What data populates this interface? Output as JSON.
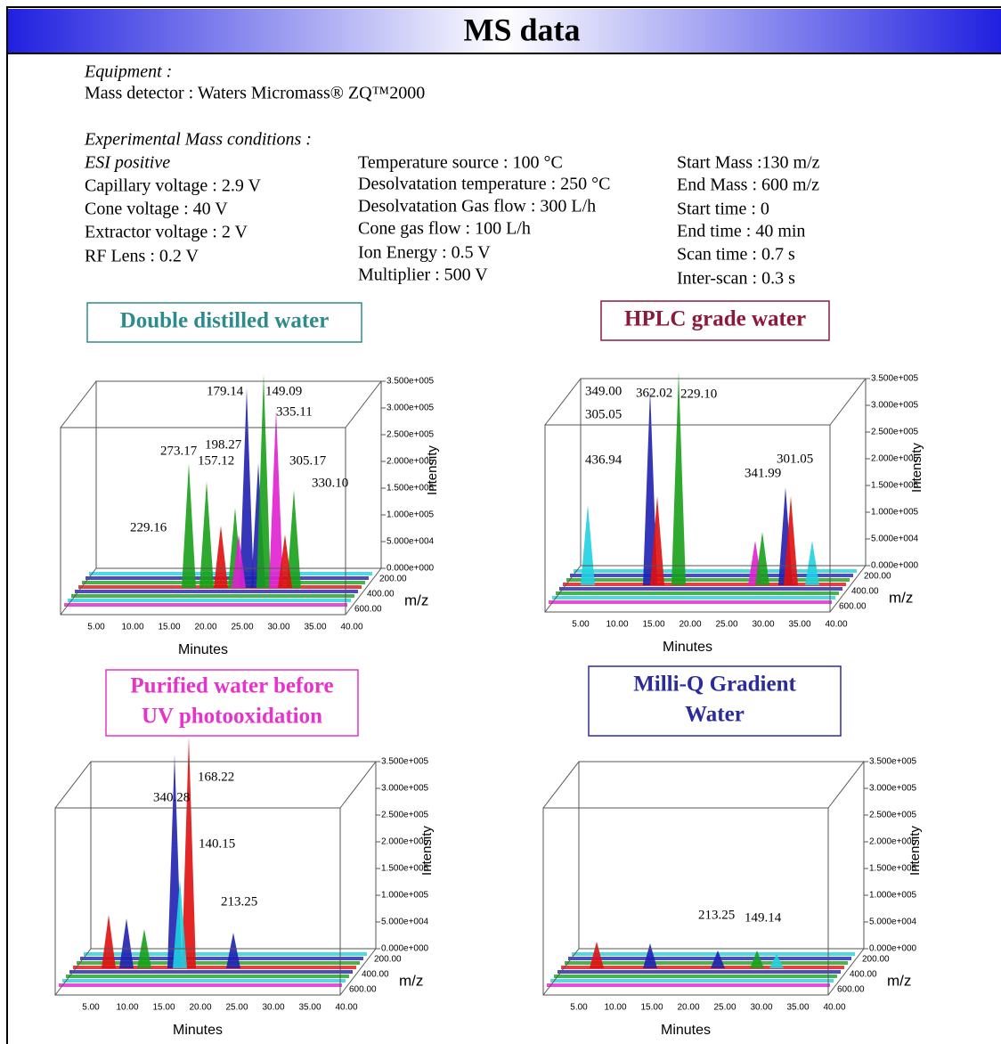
{
  "header": {
    "title": "MS data"
  },
  "equipment": {
    "heading": "Equipment :",
    "detector": "Mass detector : Waters Micromass® ZQ™2000"
  },
  "conditions": {
    "heading": "Experimental Mass conditions :",
    "columns": [
      [
        "ESI positive",
        "Capillary voltage : 2.9 V",
        "Cone voltage : 40 V",
        "Extractor voltage : 2 V",
        "RF Lens : 0.2 V"
      ],
      [
        "Temperature source : 100 °C",
        "Desolvatation temperature : 250 °C",
        "Desolvatation Gas flow : 300 L/h",
        "Cone gas flow : 100 L/h",
        "Ion Energy : 0.5 V",
        "Multiplier : 500 V"
      ],
      [
        "Start Mass :130 m/z",
        "End Mass : 600 m/z",
        "Start time : 0",
        "End time : 40 min",
        "Scan time : 0.7 s",
        "Inter-scan : 0.3 s"
      ]
    ]
  },
  "charts": [
    {
      "title": [
        "Double distilled water"
      ],
      "peak_labels": [
        "179.14",
        "149.09",
        "335.11",
        "198.27",
        "273.17",
        "157.12",
        "305.17",
        "330.10",
        "229.16"
      ],
      "intensity_ticks": [
        "3.500e+005",
        "3.000e+005",
        "2.500e+005",
        "2.000e+005",
        "1.500e+005",
        "1.000e+005",
        "5.000e+004",
        "0.000e+000"
      ],
      "mz_ticks": [
        "200.00",
        "400.00",
        "600.00"
      ],
      "minute_ticks": [
        "5.00",
        "10.00",
        "15.00",
        "20.00",
        "25.00",
        "30.00",
        "35.00",
        "40.00"
      ],
      "x_label": "Minutes",
      "y_label": "Intensity",
      "z_label": "m/z"
    },
    {
      "title": [
        "HPLC grade water"
      ],
      "peak_labels": [
        "349.00",
        "362.02",
        "229.10",
        "305.05",
        "436.94",
        "301.05",
        "341.99"
      ],
      "intensity_ticks": [
        "3.500e+005",
        "3.000e+005",
        "2.500e+005",
        "2.000e+005",
        "1.500e+005",
        "1.000e+005",
        "5.000e+004",
        "0.000e+000"
      ],
      "mz_ticks": [
        "200.00",
        "400.00",
        "600.00"
      ],
      "minute_ticks": [
        "5.00",
        "10.00",
        "15.00",
        "20.00",
        "25.00",
        "30.00",
        "35.00",
        "40.00"
      ],
      "x_label": "Minutes",
      "y_label": "Intensity",
      "z_label": "m/z"
    },
    {
      "title": [
        "Purified water before",
        "UV photooxidation"
      ],
      "peak_labels": [
        "168.22",
        "340.28",
        "140.15",
        "213.25"
      ],
      "intensity_ticks": [
        "3.500e+005",
        "3.000e+005",
        "2.500e+005",
        "2.000e+005",
        "1.500e+005",
        "1.000e+005",
        "5.000e+004",
        "0.000e+000"
      ],
      "mz_ticks": [
        "200.00",
        "400.00",
        "600.00"
      ],
      "minute_ticks": [
        "5.00",
        "10.00",
        "15.00",
        "20.00",
        "25.00",
        "30.00",
        "35.00",
        "40.00"
      ],
      "x_label": "Minutes",
      "y_label": "Intensity",
      "z_label": "m/z"
    },
    {
      "title": [
        "Milli-Q Gradient",
        "Water"
      ],
      "peak_labels": [
        "213.25",
        "149.14"
      ],
      "intensity_ticks": [
        "3.500e+005",
        "3.000e+005",
        "2.500e+005",
        "2.000e+005",
        "1.500e+005",
        "1.000e+005",
        "5.000e+004",
        "0.000e+000"
      ],
      "mz_ticks": [
        "200.00",
        "400.00",
        "600.00"
      ],
      "minute_ticks": [
        "5.00",
        "10.00",
        "15.00",
        "20.00",
        "25.00",
        "30.00",
        "35.00",
        "40.00"
      ],
      "x_label": "Minutes",
      "y_label": "Intensity",
      "z_label": "m/z"
    }
  ]
}
